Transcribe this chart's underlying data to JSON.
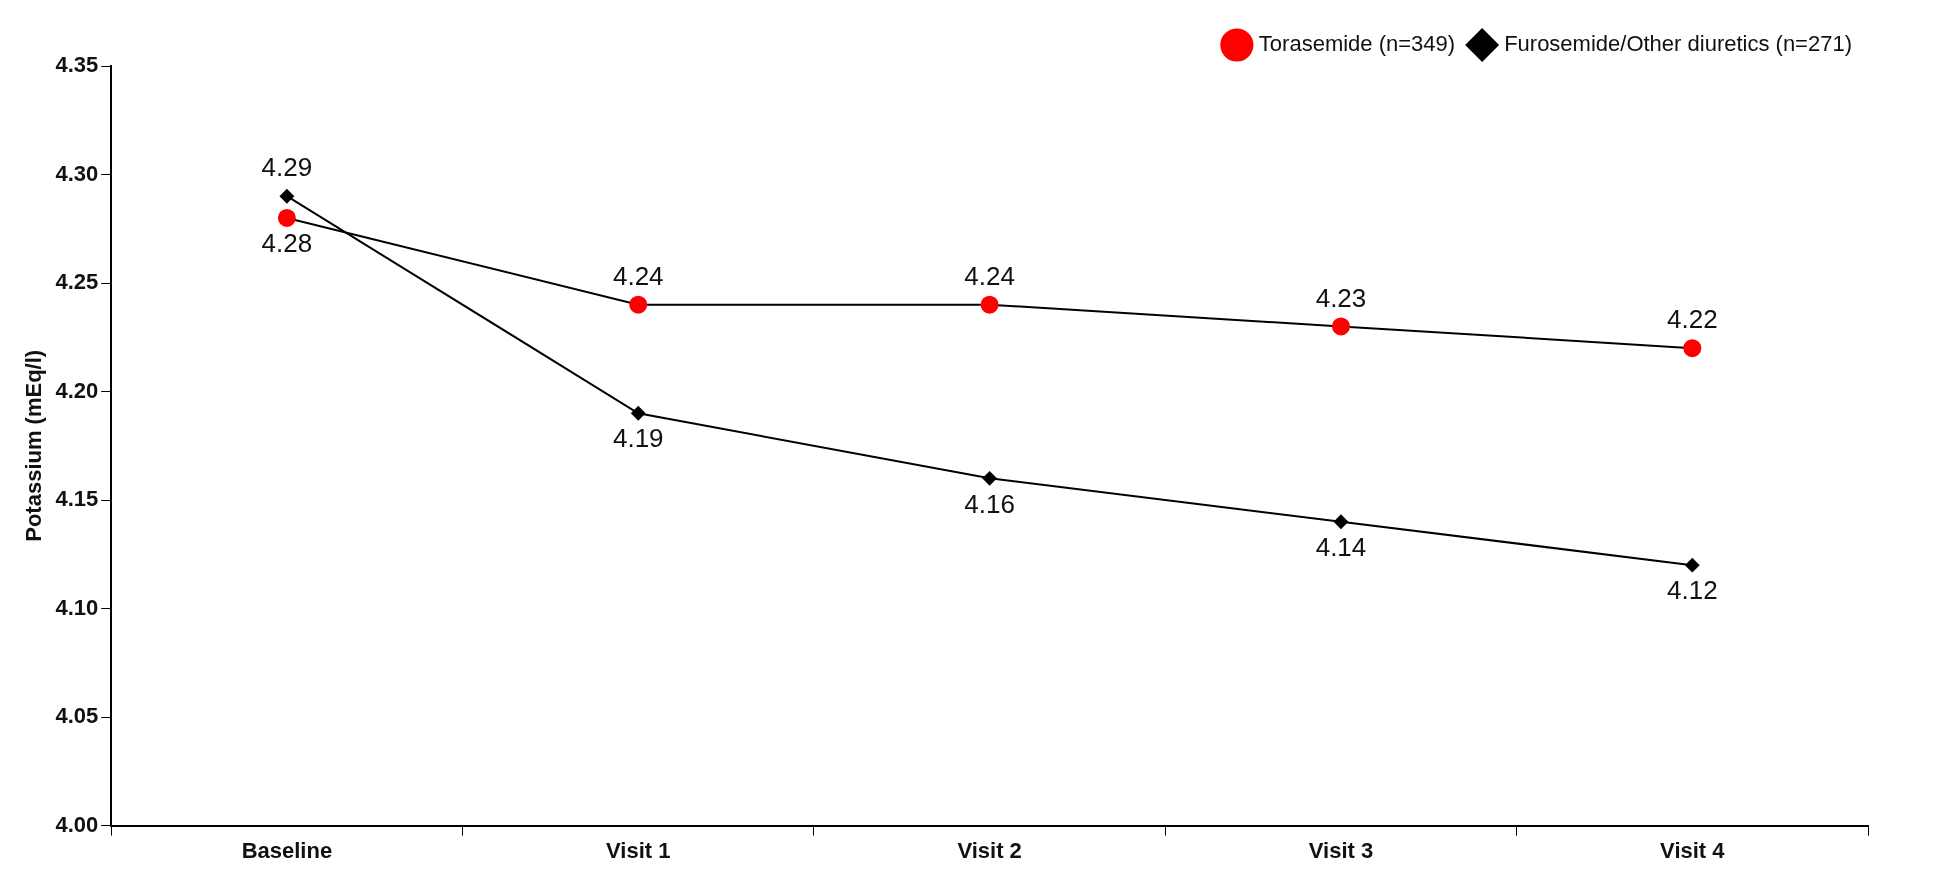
{
  "chart_data": {
    "type": "line",
    "ylabel": "Potassium (mEq/l)",
    "categories": [
      "Baseline",
      "Visit 1",
      "Visit 2",
      "Visit 3",
      "Visit 4"
    ],
    "series": [
      {
        "name": "Torasemide (n=349)",
        "color": "#000000",
        "colors": [
          "#ff0000",
          "#ff0000",
          "#ff0000",
          "#ff0000",
          "#ff0000"
        ],
        "marker": "circle",
        "values": [
          4.28,
          4.24,
          4.24,
          4.23,
          4.22
        ]
      },
      {
        "name": "Furosemide/Other diuretics (n=271)",
        "color": "#000000",
        "marker": "diamond",
        "values": [
          4.29,
          4.19,
          4.16,
          4.14,
          4.12
        ]
      }
    ],
    "ylim": [
      4.0,
      4.35
    ],
    "yticks": [
      {
        "value": 4.0,
        "label": "4.00"
      },
      {
        "value": 4.05,
        "label": "4.05"
      },
      {
        "value": 4.1,
        "label": "4.10"
      },
      {
        "value": 4.15,
        "label": "4.15"
      },
      {
        "value": 4.2,
        "label": "4.20"
      },
      {
        "value": 4.25,
        "label": "4.25"
      },
      {
        "value": 4.3,
        "label": "4.30"
      },
      {
        "value": 4.35,
        "label": "4.35"
      }
    ],
    "grid": false,
    "legend": "top right",
    "data_labels": true
  }
}
